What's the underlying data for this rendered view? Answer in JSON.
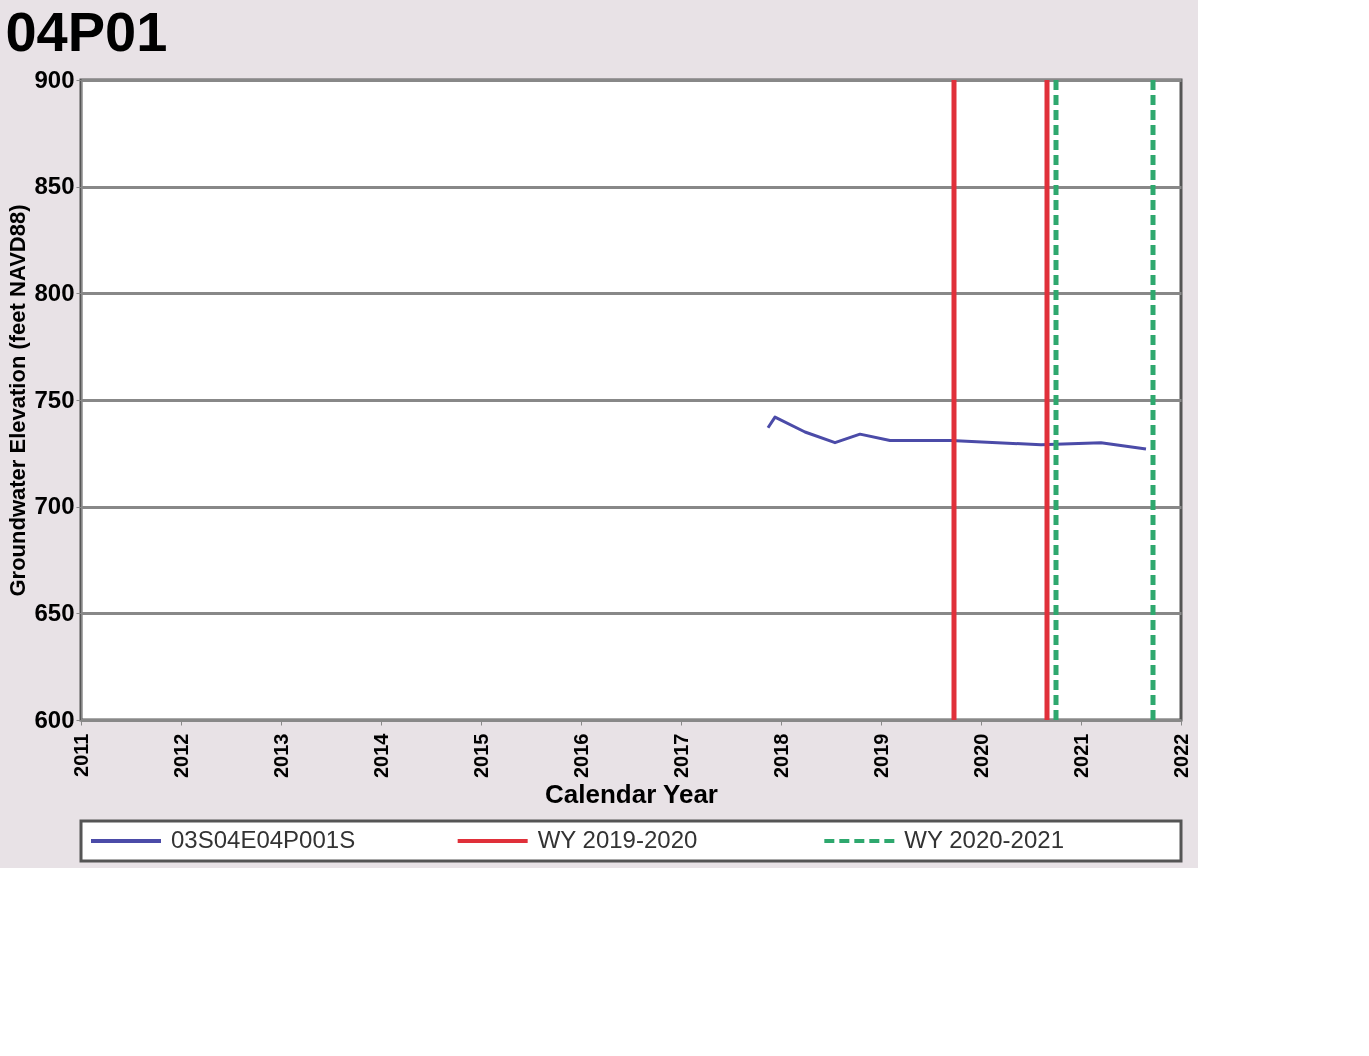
{
  "chart_data": {
    "type": "line",
    "title": "04P01",
    "xlabel": "Calendar Year",
    "ylabel": "Groundwater Elevation (feet NAVD88)",
    "series": [
      {
        "name": "03S04E04P001S",
        "color": "#4b4ba8",
        "x": [
          2017.87,
          2017.94,
          2018.24,
          2018.54,
          2018.79,
          2019.09,
          2019.7,
          2020.6,
          2021.2,
          2021.65
        ],
        "values": [
          737,
          742,
          735,
          730,
          734,
          731,
          731,
          729,
          730,
          727
        ]
      }
    ],
    "ref_lines": [
      {
        "axis": "x",
        "value": 2019.73,
        "label": "WY 2019-2020",
        "color": "#e0303a",
        "line_style": "solid"
      },
      {
        "axis": "x",
        "value": 2020.66,
        "color": "#e0303a",
        "line_style": "solid"
      },
      {
        "axis": "x",
        "value": 2020.75,
        "label": "WY 2020-2021",
        "color": "#2ea86e",
        "line_style": "dashed"
      },
      {
        "axis": "x",
        "value": 2021.72,
        "color": "#2ea86e",
        "line_style": "dashed"
      }
    ],
    "xlim": [
      2011,
      2022
    ],
    "xticks": [
      2011,
      2012,
      2013,
      2014,
      2015,
      2016,
      2017,
      2018,
      2019,
      2020,
      2021,
      2022
    ],
    "ylim": [
      600,
      900
    ],
    "yticks": [
      600,
      650,
      700,
      750,
      800,
      850,
      900
    ],
    "grid": "y",
    "legend": "bottom",
    "marker": "none",
    "line_style": "solid"
  }
}
